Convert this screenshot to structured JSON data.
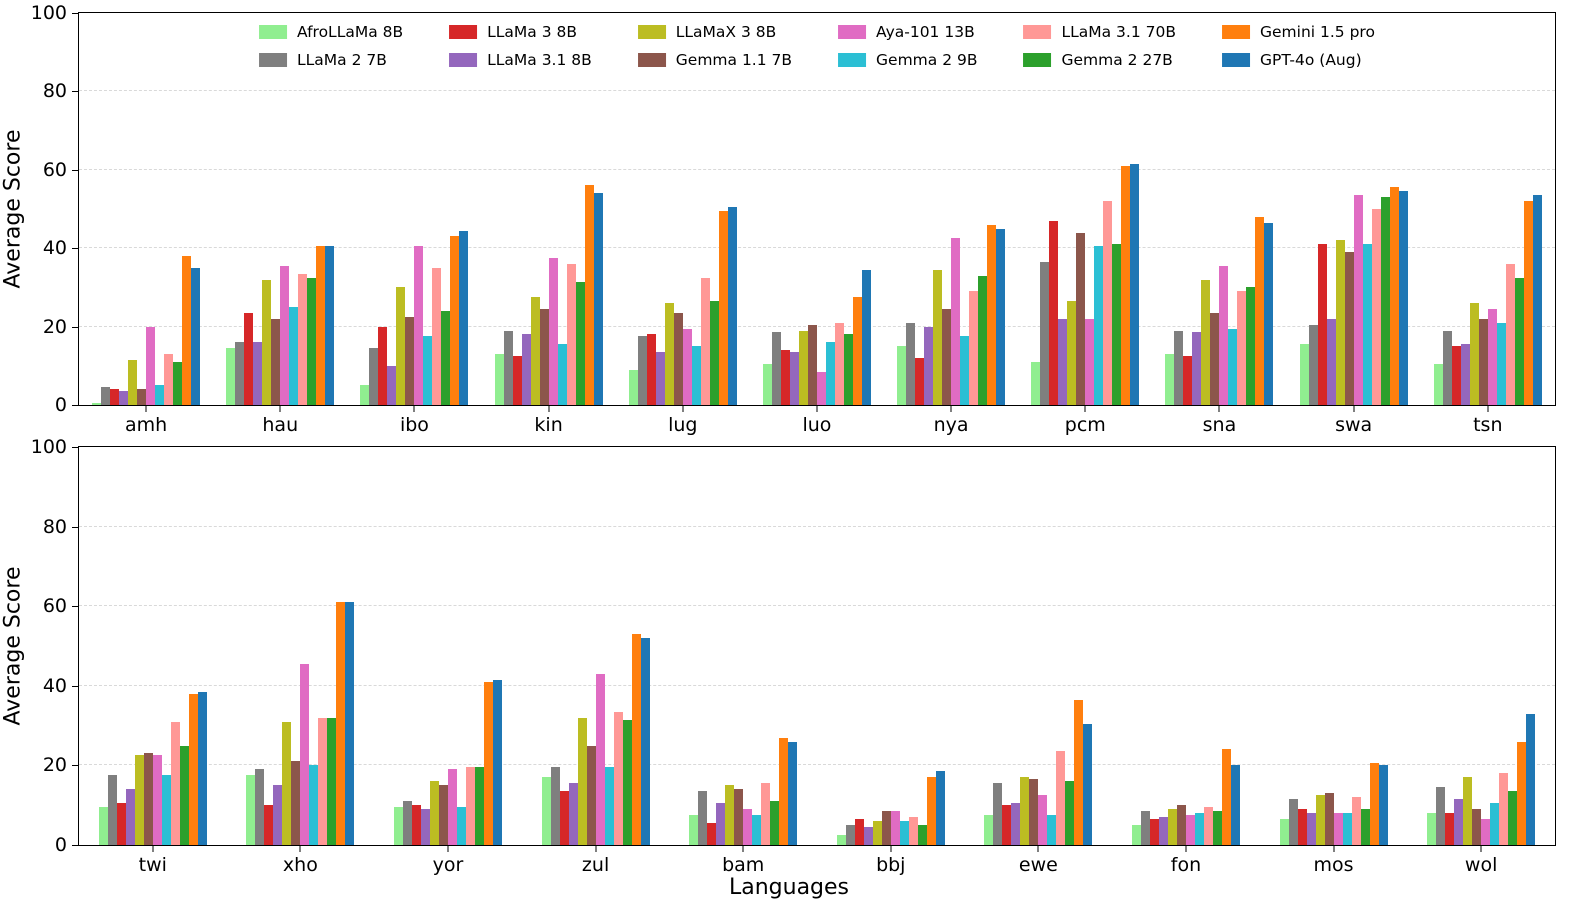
{
  "figure": {
    "xlabel": "Languages",
    "ylabel": "Average Score",
    "yticks": [
      0,
      20,
      40,
      60,
      80,
      100
    ]
  },
  "chart_data": [
    {
      "type": "bar",
      "panel": "top",
      "ylabel": "Average Score",
      "ylim": [
        0,
        100
      ],
      "grid": "dashed horizontal",
      "legend_position": "upper center inside plot, 6 columns x 2 rows",
      "categories": [
        "amh",
        "hau",
        "ibo",
        "kin",
        "lug",
        "luo",
        "nya",
        "pcm",
        "sna",
        "swa",
        "tsn"
      ],
      "series": [
        {
          "name": "AfroLLaMa 8B",
          "color": "#90ee90",
          "values": [
            0.5,
            14.5,
            5,
            13,
            9,
            10.5,
            15,
            11,
            13,
            15.5,
            10.5
          ]
        },
        {
          "name": "LLaMa 2 7B",
          "color": "#7f7f7f",
          "values": [
            4.5,
            16,
            14.5,
            19,
            17.5,
            18.5,
            21,
            36.5,
            19,
            20.5,
            19
          ]
        },
        {
          "name": "LLaMa 3 8B",
          "color": "#d62728",
          "values": [
            4,
            23.5,
            20,
            12.5,
            18,
            14,
            12,
            47,
            12.5,
            41,
            15
          ]
        },
        {
          "name": "LLaMa 3.1 8B",
          "color": "#9467bd",
          "values": [
            3.5,
            16,
            10,
            18,
            13.5,
            13.5,
            20,
            22,
            18.5,
            22,
            15.5
          ]
        },
        {
          "name": "LLaMaX 3 8B",
          "color": "#bcbd22",
          "values": [
            11.5,
            32,
            30,
            27.5,
            26,
            19,
            34.5,
            26.5,
            32,
            42,
            26
          ]
        },
        {
          "name": "Gemma 1.1 7B",
          "color": "#8c564b",
          "values": [
            4,
            22,
            22.5,
            24.5,
            23.5,
            20.5,
            24.5,
            44,
            23.5,
            39,
            22
          ]
        },
        {
          "name": "Aya-101 13B",
          "color": "#e06cc3",
          "values": [
            20,
            35.5,
            40.5,
            37.5,
            19.5,
            8.5,
            42.5,
            22,
            35.5,
            53.5,
            24.5
          ]
        },
        {
          "name": "Gemma 2 9B",
          "color": "#2bbfd4",
          "values": [
            5,
            25,
            17.5,
            15.5,
            15,
            16,
            17.5,
            40.5,
            19.5,
            41,
            21
          ]
        },
        {
          "name": "LLaMa 3.1 70B",
          "color": "#ff9896",
          "values": [
            13,
            33.5,
            35,
            36,
            32.5,
            21,
            29,
            52,
            29,
            50,
            36
          ]
        },
        {
          "name": "Gemma 2 27B",
          "color": "#2ca02c",
          "values": [
            11,
            32.5,
            24,
            31.5,
            26.5,
            18,
            33,
            41,
            30,
            53,
            32.5
          ]
        },
        {
          "name": "Gemini 1.5 pro",
          "color": "#ff7f0e",
          "values": [
            38,
            40.5,
            43,
            56,
            49.5,
            27.5,
            46,
            61,
            48,
            55.5,
            52
          ]
        },
        {
          "name": "GPT-4o (Aug)",
          "color": "#1f77b4",
          "values": [
            35,
            40.5,
            44.5,
            54,
            50.5,
            34.5,
            45,
            61.5,
            46.5,
            54.5,
            53.5
          ]
        }
      ]
    },
    {
      "type": "bar",
      "panel": "bottom",
      "ylabel": "Average Score",
      "ylim": [
        0,
        100
      ],
      "grid": "dashed horizontal",
      "categories": [
        "twi",
        "xho",
        "yor",
        "zul",
        "bam",
        "bbj",
        "ewe",
        "fon",
        "mos",
        "wol"
      ],
      "series": [
        {
          "name": "AfroLLaMa 8B",
          "color": "#90ee90",
          "values": [
            9.5,
            17.5,
            9.5,
            17,
            7.5,
            2.5,
            7.5,
            5,
            6.5,
            8
          ]
        },
        {
          "name": "LLaMa 2 7B",
          "color": "#7f7f7f",
          "values": [
            17.5,
            19,
            11,
            19.5,
            13.5,
            5,
            15.5,
            8.5,
            11.5,
            14.5
          ]
        },
        {
          "name": "LLaMa 3 8B",
          "color": "#d62728",
          "values": [
            10.5,
            10,
            10,
            13.5,
            5.5,
            6.5,
            10,
            6.5,
            9,
            8
          ]
        },
        {
          "name": "LLaMa 3.1 8B",
          "color": "#9467bd",
          "values": [
            14,
            15,
            9,
            15.5,
            10.5,
            4.5,
            10.5,
            7,
            8,
            11.5
          ]
        },
        {
          "name": "LLaMaX 3 8B",
          "color": "#bcbd22",
          "values": [
            22.5,
            31,
            16,
            32,
            15,
            6,
            17,
            9,
            12.5,
            17
          ]
        },
        {
          "name": "Gemma 1.1 7B",
          "color": "#8c564b",
          "values": [
            23,
            21,
            15,
            25,
            14,
            8.5,
            16.5,
            10,
            13,
            9
          ]
        },
        {
          "name": "Aya-101 13B",
          "color": "#e06cc3",
          "values": [
            22.5,
            45.5,
            19,
            43,
            9,
            8.5,
            12.5,
            7.5,
            8,
            6.5
          ]
        },
        {
          "name": "Gemma 2 9B",
          "color": "#2bbfd4",
          "values": [
            17.5,
            20,
            9.5,
            19.5,
            7.5,
            6,
            7.5,
            8,
            8,
            10.5
          ]
        },
        {
          "name": "LLaMa 3.1 70B",
          "color": "#ff9896",
          "values": [
            31,
            32,
            19.5,
            33.5,
            15.5,
            7,
            23.5,
            9.5,
            12,
            18
          ]
        },
        {
          "name": "Gemma 2 27B",
          "color": "#2ca02c",
          "values": [
            25,
            32,
            19.5,
            31.5,
            11,
            5,
            16,
            8.5,
            9,
            13.5
          ]
        },
        {
          "name": "Gemini 1.5 pro",
          "color": "#ff7f0e",
          "values": [
            38,
            61,
            41,
            53,
            27,
            17,
            36.5,
            24,
            20.5,
            26
          ]
        },
        {
          "name": "GPT-4o (Aug)",
          "color": "#1f77b4",
          "values": [
            38.5,
            61,
            41.5,
            52,
            26,
            18.5,
            30.5,
            20,
            20,
            33
          ]
        }
      ]
    }
  ],
  "legend": {
    "items": [
      {
        "label": "AfroLLaMa 8B",
        "color": "#90ee90"
      },
      {
        "label": "LLaMa 2 7B",
        "color": "#7f7f7f"
      },
      {
        "label": "LLaMa 3 8B",
        "color": "#d62728"
      },
      {
        "label": "LLaMa 3.1 8B",
        "color": "#9467bd"
      },
      {
        "label": "LLaMaX 3 8B",
        "color": "#bcbd22"
      },
      {
        "label": "Gemma 1.1 7B",
        "color": "#8c564b"
      },
      {
        "label": "Aya-101 13B",
        "color": "#e06cc3"
      },
      {
        "label": "Gemma 2 9B",
        "color": "#2bbfd4"
      },
      {
        "label": "LLaMa 3.1 70B",
        "color": "#ff9896"
      },
      {
        "label": "Gemma 2 27B",
        "color": "#2ca02c"
      },
      {
        "label": "Gemini 1.5 pro",
        "color": "#ff7f0e"
      },
      {
        "label": "GPT-4o (Aug)",
        "color": "#1f77b4"
      }
    ]
  }
}
